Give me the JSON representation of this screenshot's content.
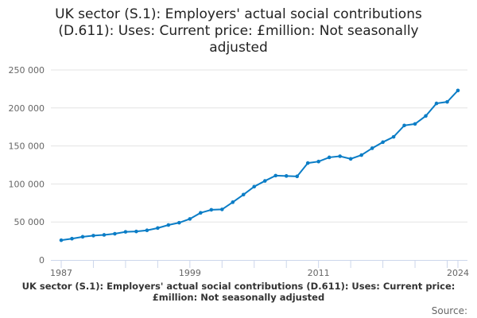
{
  "chart_data": {
    "type": "line",
    "title": "UK sector (S.1): Employers' actual social contributions (D.611): Uses: Current price: £million: Not seasonally adjusted",
    "xlabel": "",
    "ylabel": "",
    "ylim": [
      0,
      250000
    ],
    "yticks": [
      "0",
      "50 000",
      "100 000",
      "150 000",
      "200 000",
      "250 000"
    ],
    "ytick_values": [
      0,
      50000,
      100000,
      150000,
      200000,
      250000
    ],
    "xticks": [
      "1987",
      "1999",
      "2011",
      "2024"
    ],
    "grid": true,
    "legend": "UK sector (S.1): Employers' actual social contributions (D.611): Uses: Current price: £million: Not seasonally adjusted",
    "color": "#0b7dc6",
    "x": [
      1987,
      1988,
      1989,
      1990,
      1991,
      1992,
      1993,
      1994,
      1995,
      1996,
      1997,
      1998,
      1999,
      2000,
      2001,
      2002,
      2003,
      2004,
      2005,
      2006,
      2007,
      2008,
      2009,
      2010,
      2011,
      2012,
      2013,
      2014,
      2015,
      2016,
      2017,
      2018,
      2019,
      2020,
      2021,
      2022,
      2023,
      2024
    ],
    "values": [
      26000,
      28000,
      30500,
      32000,
      33000,
      34500,
      37000,
      37500,
      39000,
      42000,
      46000,
      49000,
      54000,
      62000,
      66000,
      66500,
      76000,
      86000,
      96500,
      104000,
      111000,
      110500,
      110000,
      127500,
      129500,
      135000,
      136500,
      133000,
      138000,
      147000,
      155000,
      162000,
      177000,
      179000,
      189500,
      206000,
      208000,
      223000
    ]
  },
  "source_label": "Source:"
}
